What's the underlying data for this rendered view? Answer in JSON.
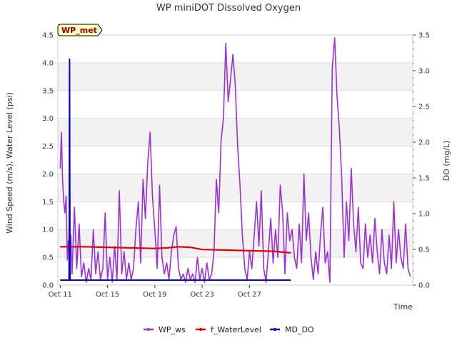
{
  "chart_data": {
    "type": "line",
    "title": "WP miniDOT Dissolved Oxygen",
    "badge": "WP_met",
    "xlabel": "Time",
    "ylabel_left": "Wind Speed (m/s), Water Level (psi)",
    "ylabel_right": "DO (mg/L)",
    "x_unit": "days from Oct 11 00:00",
    "xlim": [
      -0.2,
      29.8
    ],
    "ylim_left": [
      0,
      4.5
    ],
    "ylim_right": [
      0,
      3.5
    ],
    "x_ticks": [
      {
        "x": 0,
        "label": "Oct 11"
      },
      {
        "x": 4,
        "label": "Oct 15"
      },
      {
        "x": 8,
        "label": "Oct 19"
      },
      {
        "x": 12,
        "label": "Oct 23"
      },
      {
        "x": 16,
        "label": "Oct 27"
      }
    ],
    "y_ticks_left": [
      {
        "y": 0,
        "label": "0.0"
      },
      {
        "y": 0.5,
        "label": "0.5"
      },
      {
        "y": 1.0,
        "label": "1.0"
      },
      {
        "y": 1.5,
        "label": "1.5"
      },
      {
        "y": 2.0,
        "label": "2.0"
      },
      {
        "y": 2.5,
        "label": "2.5"
      },
      {
        "y": 3.0,
        "label": "3.0"
      },
      {
        "y": 3.5,
        "label": "3.5"
      },
      {
        "y": 4.0,
        "label": "4.0"
      },
      {
        "y": 4.5,
        "label": "4.5"
      }
    ],
    "y_ticks_right": [
      {
        "y": 0,
        "label": "0.0"
      },
      {
        "y": 0.5,
        "label": "0.5"
      },
      {
        "y": 1.0,
        "label": "1.0"
      },
      {
        "y": 1.5,
        "label": "1.5"
      },
      {
        "y": 2.0,
        "label": "2.0"
      },
      {
        "y": 2.5,
        "label": "2.5"
      },
      {
        "y": 3.0,
        "label": "3.0"
      },
      {
        "y": 3.5,
        "label": "3.5"
      }
    ],
    "grid": true,
    "legend_position": "bottom-center",
    "series": [
      {
        "name": "WP_ws",
        "axis": "left",
        "color": "#9b30d9",
        "x": [
          0.0,
          0.1,
          0.2,
          0.3,
          0.4,
          0.5,
          0.6,
          0.7,
          0.8,
          0.9,
          1.0,
          1.2,
          1.4,
          1.6,
          1.8,
          2.0,
          2.2,
          2.4,
          2.6,
          2.8,
          3.0,
          3.2,
          3.4,
          3.6,
          3.8,
          4.0,
          4.2,
          4.4,
          4.6,
          4.8,
          5.0,
          5.2,
          5.4,
          5.6,
          5.8,
          6.0,
          6.2,
          6.4,
          6.6,
          6.8,
          7.0,
          7.2,
          7.4,
          7.6,
          7.8,
          8.0,
          8.2,
          8.4,
          8.6,
          8.8,
          9.0,
          9.2,
          9.4,
          9.6,
          9.8,
          10.0,
          10.2,
          10.4,
          10.6,
          10.8,
          11.0,
          11.2,
          11.4,
          11.6,
          11.8,
          12.0,
          12.2,
          12.4,
          12.6,
          12.8,
          13.0,
          13.2,
          13.4,
          13.6,
          13.8,
          14.0,
          14.2,
          14.4,
          14.6,
          14.8,
          15.0,
          15.2,
          15.4,
          15.6,
          15.8,
          16.0,
          16.2,
          16.4,
          16.6,
          16.8,
          17.0,
          17.2,
          17.4,
          17.6,
          17.8,
          18.0,
          18.2,
          18.4,
          18.6,
          18.8,
          19.0,
          19.2,
          19.4,
          19.6,
          19.8,
          20.0,
          20.2,
          20.4,
          20.6,
          20.8,
          21.0,
          21.2,
          21.4,
          21.6,
          21.8,
          22.0,
          22.2,
          22.4,
          22.6,
          22.8,
          23.0,
          23.2,
          23.4,
          23.6,
          23.8,
          24.0,
          24.2,
          24.4,
          24.6,
          24.8,
          25.0,
          25.2,
          25.4,
          25.6,
          25.8,
          26.0,
          26.2,
          26.4,
          26.6,
          26.8,
          27.0,
          27.2,
          27.4,
          27.6,
          27.8,
          28.0,
          28.2,
          28.4,
          28.6,
          28.8,
          29.0,
          29.2,
          29.4,
          29.6
        ],
        "values": [
          2.1,
          2.75,
          1.9,
          1.5,
          1.3,
          1.6,
          0.45,
          0.8,
          0.5,
          0.9,
          0.2,
          1.4,
          0.3,
          1.1,
          0.15,
          0.4,
          0.05,
          0.3,
          0.1,
          1.0,
          0.2,
          0.6,
          0.1,
          0.3,
          1.3,
          0.1,
          0.5,
          0.05,
          0.7,
          0.1,
          1.7,
          0.2,
          0.6,
          0.1,
          0.4,
          0.1,
          0.3,
          1.0,
          1.5,
          0.4,
          1.9,
          1.2,
          2.2,
          2.75,
          1.6,
          1.0,
          0.3,
          1.8,
          0.5,
          0.2,
          0.4,
          0.1,
          0.6,
          0.9,
          1.05,
          0.3,
          0.1,
          0.2,
          0.05,
          0.3,
          0.1,
          0.2,
          0.05,
          0.5,
          0.1,
          0.3,
          0.05,
          0.4,
          0.1,
          0.2,
          0.6,
          1.9,
          1.3,
          2.6,
          3.0,
          4.35,
          3.3,
          3.7,
          4.15,
          3.6,
          2.5,
          1.8,
          0.9,
          0.3,
          0.1,
          0.6,
          0.3,
          0.9,
          1.5,
          0.7,
          1.7,
          0.3,
          0.05,
          0.6,
          1.2,
          0.4,
          1.0,
          0.5,
          1.8,
          1.3,
          0.2,
          1.3,
          0.8,
          1.0,
          0.5,
          0.3,
          1.1,
          0.4,
          2.0,
          0.8,
          1.3,
          0.5,
          0.1,
          0.6,
          0.2,
          0.9,
          1.4,
          0.4,
          0.6,
          0.05,
          3.9,
          4.45,
          3.4,
          2.8,
          1.9,
          0.5,
          1.5,
          0.8,
          2.1,
          1.1,
          0.6,
          1.4,
          0.4,
          0.3,
          1.1,
          0.5,
          0.9,
          0.4,
          1.2,
          0.6,
          0.2,
          1.0,
          0.4,
          0.2,
          0.9,
          0.3,
          1.5,
          0.4,
          1.0,
          0.5,
          0.3,
          1.1,
          0.3,
          0.15
        ]
      },
      {
        "name": "f_WaterLevel",
        "axis": "left",
        "color": "#dd0000",
        "x": [
          0.0,
          2.0,
          4.0,
          6.0,
          8.0,
          9.0,
          10.0,
          11.0,
          12.0,
          14.0,
          16.0,
          18.0,
          19.0,
          19.5
        ],
        "values": [
          0.69,
          0.69,
          0.68,
          0.67,
          0.66,
          0.67,
          0.69,
          0.68,
          0.64,
          0.63,
          0.62,
          0.61,
          0.59,
          0.58
        ]
      },
      {
        "name": "MD_DO",
        "axis": "right",
        "color": "#0000cc",
        "x": [
          0.0,
          0.75,
          0.77,
          0.79,
          0.81,
          0.83,
          19.5
        ],
        "values": [
          0.07,
          0.07,
          0.9,
          3.16,
          1.5,
          0.07,
          0.07
        ]
      }
    ]
  }
}
